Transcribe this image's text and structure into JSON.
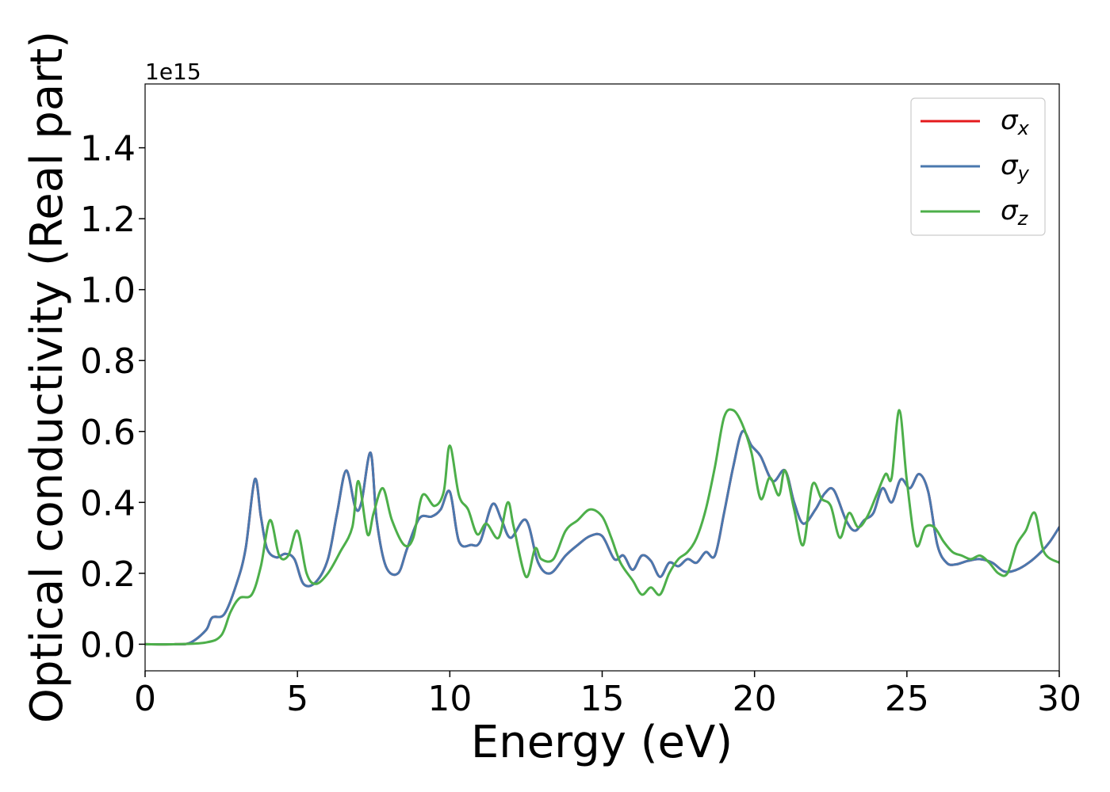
{
  "chart_data": {
    "type": "line",
    "xlabel": "Energy (eV)",
    "ylabel": "Optical conductivity (Real part)",
    "y_offset_label": "1e15",
    "xlim": [
      0,
      30
    ],
    "ylim": [
      -0.075,
      1.58
    ],
    "x_ticks": [
      0,
      5,
      10,
      15,
      20,
      25,
      30
    ],
    "y_ticks": [
      0.0,
      0.2,
      0.4,
      0.6,
      0.8,
      1.0,
      1.2,
      1.4
    ],
    "x_tick_labels": [
      "0",
      "5",
      "10",
      "15",
      "20",
      "25",
      "30"
    ],
    "y_tick_labels": [
      "0.0",
      "0.2",
      "0.4",
      "0.6",
      "0.8",
      "1.0",
      "1.2",
      "1.4"
    ],
    "grid": false,
    "legend_position": "top-right",
    "series": [
      {
        "name": "σx",
        "legend_symbol": "σ",
        "legend_sub": "x",
        "color": "#e41a1c",
        "x": [
          0,
          1,
          1.5,
          2,
          2.2,
          2.6,
          3,
          3.3,
          3.6,
          3.8,
          4,
          4.3,
          4.6,
          4.9,
          5.2,
          5.6,
          6,
          6.3,
          6.6,
          6.9,
          7.1,
          7.4,
          7.6,
          7.9,
          8.3,
          8.6,
          9,
          9.4,
          9.7,
          10,
          10.3,
          10.7,
          11,
          11.4,
          11.7,
          12,
          12.5,
          12.9,
          13.3,
          13.8,
          14.2,
          14.6,
          15,
          15.4,
          15.7,
          16,
          16.3,
          16.6,
          16.9,
          17.2,
          17.5,
          17.8,
          18.1,
          18.4,
          18.7,
          19,
          19.3,
          19.6,
          19.9,
          20.2,
          20.6,
          21,
          21.3,
          21.6,
          22,
          22.3,
          22.6,
          23,
          23.3,
          23.6,
          23.9,
          24.2,
          24.5,
          24.8,
          25.1,
          25.4,
          25.7,
          26,
          26.3,
          26.6,
          27,
          27.4,
          27.8,
          28.2,
          28.6,
          29,
          29.4,
          29.7,
          30
        ],
        "y": [
          0,
          0,
          0.005,
          0.04,
          0.075,
          0.085,
          0.17,
          0.27,
          0.465,
          0.36,
          0.27,
          0.245,
          0.255,
          0.24,
          0.17,
          0.175,
          0.24,
          0.37,
          0.49,
          0.385,
          0.4,
          0.54,
          0.35,
          0.22,
          0.2,
          0.27,
          0.355,
          0.36,
          0.38,
          0.43,
          0.29,
          0.28,
          0.29,
          0.395,
          0.35,
          0.3,
          0.35,
          0.23,
          0.2,
          0.25,
          0.28,
          0.305,
          0.305,
          0.24,
          0.25,
          0.21,
          0.25,
          0.235,
          0.19,
          0.23,
          0.22,
          0.24,
          0.23,
          0.26,
          0.25,
          0.37,
          0.5,
          0.6,
          0.56,
          0.53,
          0.46,
          0.49,
          0.4,
          0.34,
          0.38,
          0.425,
          0.435,
          0.35,
          0.32,
          0.35,
          0.37,
          0.44,
          0.4,
          0.465,
          0.44,
          0.48,
          0.43,
          0.28,
          0.23,
          0.225,
          0.235,
          0.24,
          0.23,
          0.205,
          0.21,
          0.23,
          0.26,
          0.29,
          0.33
        ]
      },
      {
        "name": "σy",
        "legend_symbol": "σ",
        "legend_sub": "y",
        "color": "#4a78ae",
        "x": [
          0,
          1,
          1.5,
          2,
          2.2,
          2.6,
          3,
          3.3,
          3.6,
          3.8,
          4,
          4.3,
          4.6,
          4.9,
          5.2,
          5.6,
          6,
          6.3,
          6.6,
          6.9,
          7.1,
          7.4,
          7.6,
          7.9,
          8.3,
          8.6,
          9,
          9.4,
          9.7,
          10,
          10.3,
          10.7,
          11,
          11.4,
          11.7,
          12,
          12.5,
          12.9,
          13.3,
          13.8,
          14.2,
          14.6,
          15,
          15.4,
          15.7,
          16,
          16.3,
          16.6,
          16.9,
          17.2,
          17.5,
          17.8,
          18.1,
          18.4,
          18.7,
          19,
          19.3,
          19.6,
          19.9,
          20.2,
          20.6,
          21,
          21.3,
          21.6,
          22,
          22.3,
          22.6,
          23,
          23.3,
          23.6,
          23.9,
          24.2,
          24.5,
          24.8,
          25.1,
          25.4,
          25.7,
          26,
          26.3,
          26.6,
          27,
          27.4,
          27.8,
          28.2,
          28.6,
          29,
          29.4,
          29.7,
          30
        ],
        "y": [
          0,
          0,
          0.005,
          0.04,
          0.075,
          0.085,
          0.17,
          0.27,
          0.465,
          0.36,
          0.27,
          0.245,
          0.255,
          0.24,
          0.17,
          0.175,
          0.24,
          0.37,
          0.49,
          0.385,
          0.4,
          0.54,
          0.35,
          0.22,
          0.2,
          0.27,
          0.355,
          0.36,
          0.38,
          0.43,
          0.29,
          0.28,
          0.29,
          0.395,
          0.35,
          0.3,
          0.35,
          0.23,
          0.2,
          0.25,
          0.28,
          0.305,
          0.305,
          0.24,
          0.25,
          0.21,
          0.25,
          0.235,
          0.19,
          0.23,
          0.22,
          0.24,
          0.23,
          0.26,
          0.25,
          0.37,
          0.5,
          0.6,
          0.56,
          0.53,
          0.46,
          0.49,
          0.4,
          0.34,
          0.38,
          0.425,
          0.435,
          0.35,
          0.32,
          0.35,
          0.37,
          0.44,
          0.4,
          0.465,
          0.44,
          0.48,
          0.43,
          0.28,
          0.23,
          0.225,
          0.235,
          0.24,
          0.23,
          0.205,
          0.21,
          0.23,
          0.26,
          0.29,
          0.33
        ]
      },
      {
        "name": "σz",
        "legend_symbol": "σ",
        "legend_sub": "z",
        "color": "#4daf4a",
        "x": [
          0,
          1,
          2,
          2.5,
          2.8,
          3.1,
          3.5,
          3.8,
          4.1,
          4.4,
          4.7,
          5,
          5.3,
          5.6,
          6,
          6.4,
          6.8,
          7,
          7.3,
          7.5,
          7.8,
          8.1,
          8.5,
          8.8,
          9.1,
          9.5,
          9.8,
          10,
          10.3,
          10.6,
          10.9,
          11.2,
          11.6,
          11.9,
          12.1,
          12.5,
          12.8,
          13,
          13.4,
          13.8,
          14.2,
          14.6,
          15,
          15.3,
          15.6,
          16,
          16.3,
          16.6,
          16.9,
          17.2,
          17.5,
          17.8,
          18.1,
          18.4,
          18.7,
          19,
          19.3,
          19.6,
          19.9,
          20.2,
          20.5,
          20.8,
          21,
          21.3,
          21.6,
          21.9,
          22.2,
          22.5,
          22.8,
          23.1,
          23.4,
          23.7,
          24,
          24.3,
          24.5,
          24.75,
          25,
          25.3,
          25.6,
          25.9,
          26.2,
          26.5,
          26.8,
          27.1,
          27.4,
          27.7,
          28,
          28.3,
          28.6,
          28.9,
          29.2,
          29.5,
          30
        ],
        "y": [
          0,
          0,
          0.005,
          0.025,
          0.09,
          0.13,
          0.14,
          0.22,
          0.35,
          0.25,
          0.25,
          0.32,
          0.2,
          0.17,
          0.2,
          0.26,
          0.33,
          0.46,
          0.31,
          0.37,
          0.44,
          0.35,
          0.28,
          0.3,
          0.42,
          0.39,
          0.43,
          0.56,
          0.42,
          0.38,
          0.31,
          0.34,
          0.3,
          0.4,
          0.33,
          0.19,
          0.27,
          0.24,
          0.24,
          0.32,
          0.35,
          0.38,
          0.36,
          0.3,
          0.23,
          0.18,
          0.14,
          0.16,
          0.14,
          0.2,
          0.24,
          0.26,
          0.3,
          0.38,
          0.5,
          0.64,
          0.66,
          0.62,
          0.54,
          0.41,
          0.47,
          0.42,
          0.49,
          0.38,
          0.28,
          0.45,
          0.41,
          0.39,
          0.3,
          0.37,
          0.33,
          0.36,
          0.42,
          0.48,
          0.47,
          0.66,
          0.46,
          0.28,
          0.33,
          0.33,
          0.29,
          0.26,
          0.25,
          0.24,
          0.25,
          0.23,
          0.2,
          0.2,
          0.28,
          0.32,
          0.37,
          0.26,
          0.23
        ]
      }
    ]
  }
}
